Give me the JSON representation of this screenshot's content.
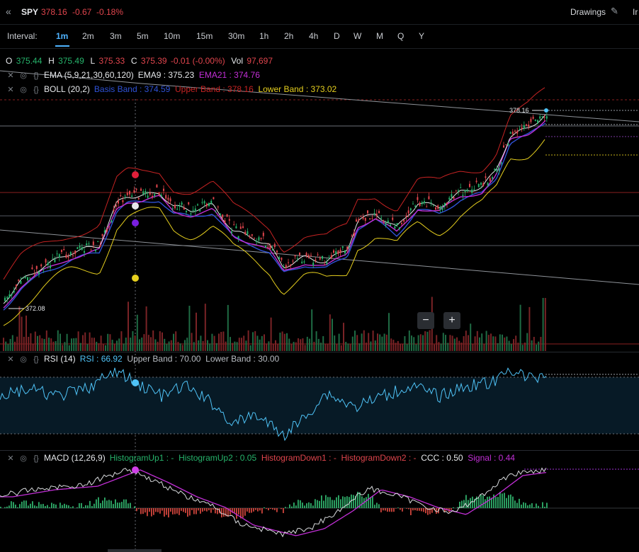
{
  "header": {
    "symbol": "SPY",
    "last_price": "378.16",
    "change": "-0.67",
    "change_pct": "-0.18%",
    "drawings_label": "Drawings",
    "indicators_label_cut": "Ir"
  },
  "intervals": {
    "label": "Interval:",
    "items": [
      "1m",
      "2m",
      "3m",
      "5m",
      "10m",
      "15m",
      "30m",
      "1h",
      "2h",
      "4h",
      "D",
      "W",
      "M",
      "Q",
      "Y"
    ],
    "active": "1m"
  },
  "ohlc": {
    "o_label": "O",
    "o": "375.44",
    "h_label": "H",
    "h": "375.49",
    "l_label": "L",
    "l": "375.33",
    "c_label": "C",
    "c": "375.39",
    "change": "-0.01 (-0.00%)",
    "vol_label": "Vol",
    "vol": "97,697"
  },
  "ema": {
    "name": "EMA (5,9,21,30,60,120)",
    "ema9": "EMA9 : 375.23",
    "ema21": "EMA21 : 374.76"
  },
  "boll": {
    "name": "BOLL (20,2)",
    "basis": "Basis Band : 374.59",
    "upper": "Upper Band : 378.16",
    "lower": "Lower Band : 373.02"
  },
  "price_labels": {
    "high": "378.16",
    "low": "372.08"
  },
  "zoom": {
    "minus": "−",
    "plus": "+"
  },
  "rsi": {
    "name": "RSI (14)",
    "value": "RSI : 66.92",
    "upper": "Upper Band : 70.00",
    "lower": "Lower Band : 30.00"
  },
  "macd": {
    "name": "MACD (12,26,9)",
    "hu1": "HistogramUp1 : -",
    "hu2": "HistogramUp2 : 0.05",
    "hd1": "HistogramDown1 : -",
    "hd2": "HistogramDown2 : -",
    "ccc": "CCC : 0.50",
    "signal": "Signal : 0.44"
  },
  "colors": {
    "up": "#26b36b",
    "down": "#e0454d",
    "ema9": "#e6e8eb",
    "ema21": "#c22fd6",
    "ema_blue": "#2f52d6",
    "boll_upper": "#c62323",
    "boll_lower": "#e6cf1e",
    "rsi": "#4fc3f7",
    "macd_signal": "#c22fd6",
    "accent": "#4fb3ff"
  },
  "icons": {
    "collapse": "double-chevron-left-icon",
    "pencil": "pencil-icon",
    "close": "close-icon",
    "eye": "eye-icon",
    "code": "code-braces-icon"
  }
}
